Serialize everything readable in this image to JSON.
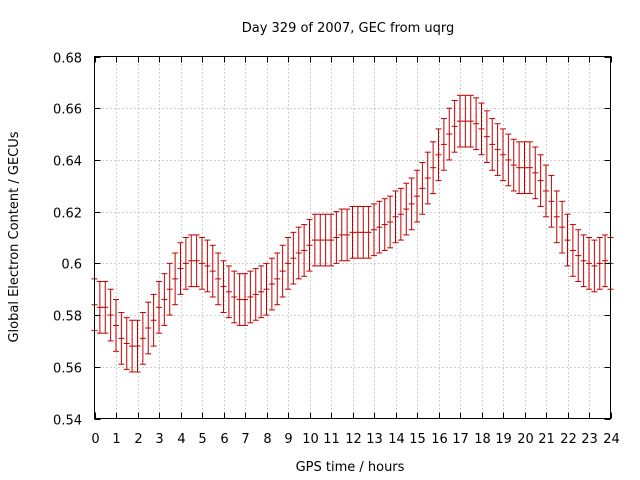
{
  "chart_data": {
    "type": "line",
    "title": "Day 329 of 2007, GEC from uqrg",
    "xlabel": "GPS time / hours",
    "ylabel": "Global Electron Content / GECUs",
    "xlim": [
      0,
      24
    ],
    "ylim": [
      0.54,
      0.68
    ],
    "xticks": [
      0,
      1,
      2,
      3,
      4,
      5,
      6,
      7,
      8,
      9,
      10,
      11,
      12,
      13,
      14,
      15,
      16,
      17,
      18,
      19,
      20,
      21,
      22,
      23,
      24
    ],
    "xtick_labels": [
      "0",
      "1",
      "2",
      "3",
      "4",
      "5",
      "6",
      "7",
      "8",
      "9",
      "10",
      "11",
      "12",
      "13",
      "14",
      "15",
      "16",
      "17",
      "18",
      "19",
      "20",
      "21",
      "22",
      "23",
      "24"
    ],
    "yticks": [
      0.54,
      0.56,
      0.58,
      0.6,
      0.62,
      0.64,
      0.66,
      0.68
    ],
    "ytick_labels": [
      "0.54",
      "0.56",
      "0.58",
      "0.6",
      "0.62",
      "0.64",
      "0.66",
      "0.68"
    ],
    "grid": true,
    "legend": "none",
    "error_color": "#c00000",
    "series": [
      {
        "x": [
          0,
          0.25,
          0.5,
          0.75,
          1,
          1.25,
          1.5,
          1.75,
          2,
          2.25,
          2.5,
          2.75,
          3,
          3.25,
          3.5,
          3.75,
          4,
          4.25,
          4.5,
          4.75,
          5,
          5.25,
          5.5,
          5.75,
          6,
          6.25,
          6.5,
          6.75,
          7,
          7.25,
          7.5,
          7.75,
          8,
          8.25,
          8.5,
          8.75,
          9,
          9.25,
          9.5,
          9.75,
          10,
          10.25,
          10.5,
          10.75,
          11,
          11.25,
          11.5,
          11.75,
          12,
          12.25,
          12.5,
          12.75,
          13,
          13.25,
          13.5,
          13.75,
          14,
          14.25,
          14.5,
          14.75,
          15,
          15.25,
          15.5,
          15.75,
          16,
          16.25,
          16.5,
          16.75,
          17,
          17.25,
          17.5,
          17.75,
          18,
          18.25,
          18.5,
          18.75,
          19,
          19.25,
          19.5,
          19.75,
          20,
          20.25,
          20.5,
          20.75,
          21,
          21.25,
          21.5,
          21.75,
          22,
          22.25,
          22.5,
          22.75,
          23,
          23.25,
          23.5,
          23.75,
          24
        ],
        "y": [
          0.584,
          0.583,
          0.583,
          0.58,
          0.576,
          0.571,
          0.569,
          0.568,
          0.568,
          0.571,
          0.575,
          0.578,
          0.583,
          0.586,
          0.59,
          0.594,
          0.598,
          0.6,
          0.601,
          0.601,
          0.6,
          0.599,
          0.597,
          0.594,
          0.591,
          0.589,
          0.587,
          0.586,
          0.586,
          0.587,
          0.588,
          0.589,
          0.59,
          0.592,
          0.594,
          0.597,
          0.6,
          0.602,
          0.604,
          0.605,
          0.607,
          0.609,
          0.609,
          0.609,
          0.609,
          0.61,
          0.611,
          0.611,
          0.612,
          0.612,
          0.612,
          0.612,
          0.613,
          0.614,
          0.615,
          0.616,
          0.618,
          0.619,
          0.621,
          0.623,
          0.626,
          0.629,
          0.633,
          0.637,
          0.642,
          0.646,
          0.65,
          0.653,
          0.655,
          0.655,
          0.655,
          0.654,
          0.652,
          0.649,
          0.646,
          0.644,
          0.642,
          0.64,
          0.638,
          0.637,
          0.637,
          0.637,
          0.635,
          0.632,
          0.628,
          0.624,
          0.618,
          0.614,
          0.609,
          0.605,
          0.603,
          0.601,
          0.6,
          0.599,
          0.6,
          0.601,
          0.6
        ],
        "yerr": 0.01
      }
    ]
  }
}
